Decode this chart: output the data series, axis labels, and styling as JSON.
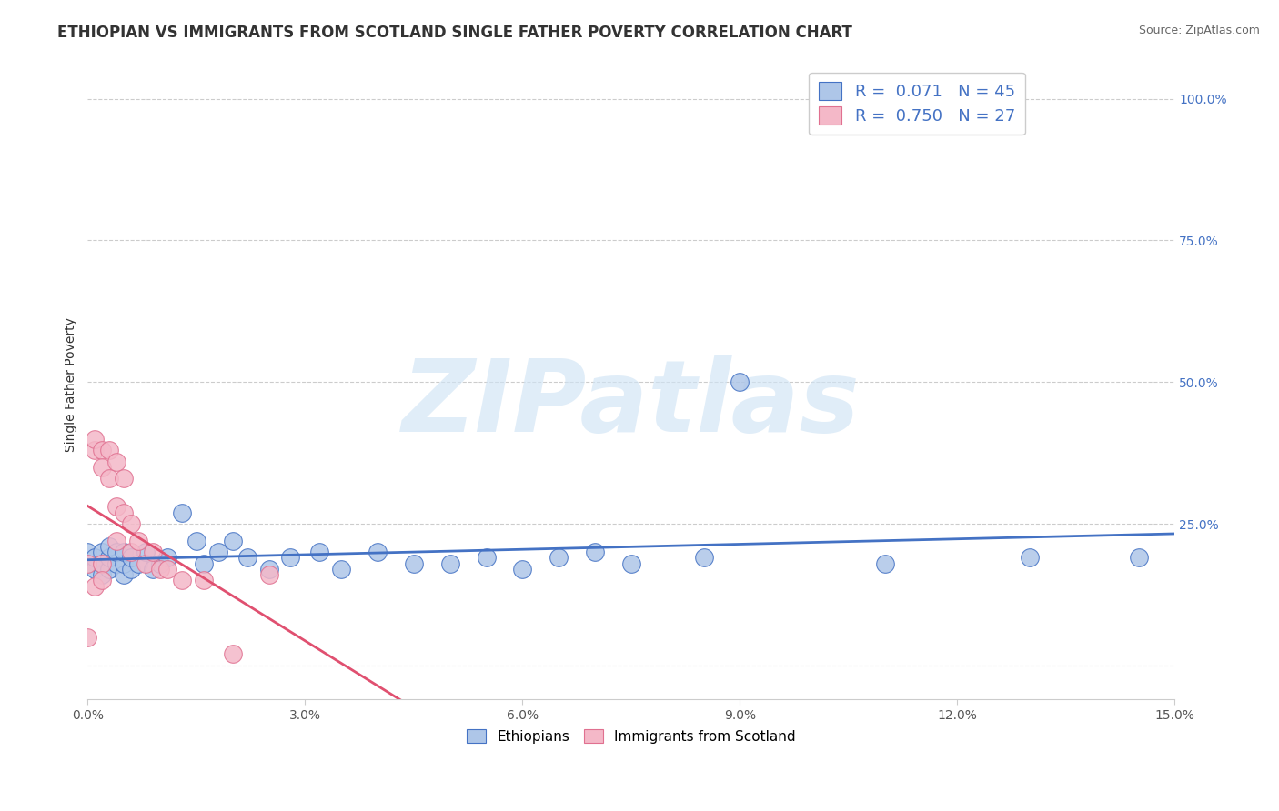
{
  "title": "ETHIOPIAN VS IMMIGRANTS FROM SCOTLAND SINGLE FATHER POVERTY CORRELATION CHART",
  "source_text": "Source: ZipAtlas.com",
  "ylabel": "Single Father Poverty",
  "watermark": "ZIPatlas",
  "xlim": [
    0.0,
    0.15
  ],
  "ylim": [
    -0.06,
    1.05
  ],
  "xticks": [
    0.0,
    0.03,
    0.06,
    0.09,
    0.12,
    0.15
  ],
  "xtick_labels": [
    "0.0%",
    "3.0%",
    "6.0%",
    "9.0%",
    "12.0%",
    "15.0%"
  ],
  "ytick_right_vals": [
    0.0,
    0.25,
    0.5,
    0.75,
    1.0
  ],
  "ytick_right_labels": [
    "",
    "25.0%",
    "50.0%",
    "75.0%",
    "100.0%"
  ],
  "blue_fill": "#aec6e8",
  "pink_fill": "#f4b8c8",
  "blue_edge": "#4472c4",
  "pink_edge": "#e07090",
  "blue_line": "#4472c4",
  "pink_line": "#e05070",
  "legend_text1": "R =  0.071   N = 45",
  "legend_text2": "R =  0.750   N = 27",
  "text_color": "#4472c4",
  "title_color": "#333333",
  "source_color": "#666666",
  "grid_color": "#cccccc",
  "tick_color": "#555555",
  "ethiopians_label": "Ethiopians",
  "scotland_label": "Immigrants from Scotland",
  "eth_x": [
    0.0,
    0.0,
    0.001,
    0.001,
    0.002,
    0.002,
    0.002,
    0.003,
    0.003,
    0.003,
    0.004,
    0.004,
    0.005,
    0.005,
    0.005,
    0.006,
    0.006,
    0.007,
    0.008,
    0.009,
    0.01,
    0.011,
    0.013,
    0.015,
    0.016,
    0.018,
    0.02,
    0.022,
    0.025,
    0.028,
    0.032,
    0.035,
    0.04,
    0.045,
    0.05,
    0.055,
    0.06,
    0.065,
    0.07,
    0.075,
    0.085,
    0.09,
    0.11,
    0.13,
    0.145
  ],
  "eth_y": [
    0.18,
    0.2,
    0.17,
    0.19,
    0.16,
    0.18,
    0.2,
    0.17,
    0.19,
    0.21,
    0.18,
    0.2,
    0.16,
    0.18,
    0.2,
    0.17,
    0.19,
    0.18,
    0.2,
    0.17,
    0.18,
    0.19,
    0.27,
    0.22,
    0.18,
    0.2,
    0.22,
    0.19,
    0.17,
    0.19,
    0.2,
    0.17,
    0.2,
    0.18,
    0.18,
    0.19,
    0.17,
    0.19,
    0.2,
    0.18,
    0.19,
    0.5,
    0.18,
    0.19,
    0.19
  ],
  "scot_x": [
    0.0,
    0.0,
    0.001,
    0.001,
    0.001,
    0.002,
    0.002,
    0.002,
    0.002,
    0.003,
    0.003,
    0.004,
    0.004,
    0.004,
    0.005,
    0.005,
    0.006,
    0.006,
    0.007,
    0.008,
    0.009,
    0.01,
    0.011,
    0.013,
    0.016,
    0.02,
    0.025
  ],
  "scot_y": [
    0.18,
    0.05,
    0.38,
    0.4,
    0.14,
    0.38,
    0.35,
    0.18,
    0.15,
    0.38,
    0.33,
    0.36,
    0.28,
    0.22,
    0.33,
    0.27,
    0.25,
    0.2,
    0.22,
    0.18,
    0.2,
    0.17,
    0.17,
    0.15,
    0.15,
    0.02,
    0.16
  ],
  "title_fontsize": 12,
  "label_fontsize": 10,
  "tick_fontsize": 10,
  "legend_fontsize": 13
}
